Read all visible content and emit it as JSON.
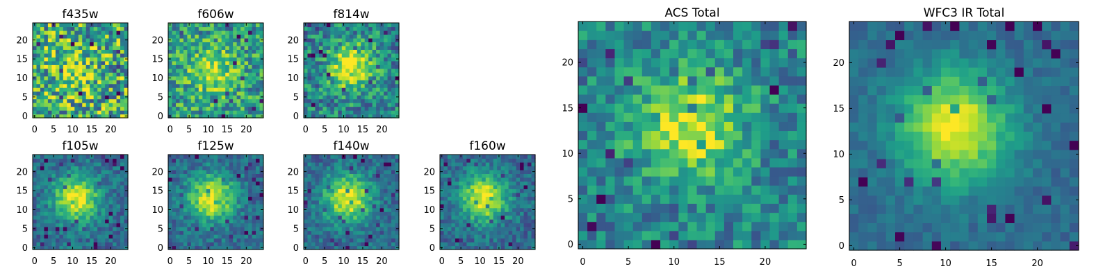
{
  "figure": {
    "caption": ""
  },
  "colormap": {
    "name": "viridis",
    "low": "#440154",
    "mid": "#21918c",
    "high": "#fde725"
  },
  "chart_data": [
    {
      "type": "heatmap",
      "title": "f435w",
      "xlim": [
        0,
        24
      ],
      "ylim": [
        0,
        24
      ],
      "xticks": [
        0,
        5,
        10,
        15,
        20
      ],
      "yticks": [
        0,
        5,
        10,
        15,
        20
      ],
      "source_peak": [
        10,
        12
      ],
      "peak_intensity": 0.2,
      "noise": 0.38,
      "background": 0.62
    },
    {
      "type": "heatmap",
      "title": "f606w",
      "xlim": [
        0,
        24
      ],
      "ylim": [
        0,
        24
      ],
      "xticks": [
        0,
        5,
        10,
        15,
        20
      ],
      "yticks": [
        0,
        5,
        10,
        15,
        20
      ],
      "source_peak": [
        11,
        12
      ],
      "peak_intensity": 0.4,
      "noise": 0.28,
      "background": 0.55
    },
    {
      "type": "heatmap",
      "title": "f814w",
      "xlim": [
        0,
        24
      ],
      "ylim": [
        0,
        24
      ],
      "xticks": [
        0,
        5,
        10,
        15,
        20
      ],
      "yticks": [
        0,
        5,
        10,
        15,
        20
      ],
      "source_peak": [
        12,
        13
      ],
      "peak_intensity": 0.55,
      "noise": 0.25,
      "background": 0.45
    },
    {
      "type": "heatmap",
      "title": "f105w",
      "xlim": [
        0,
        24
      ],
      "ylim": [
        0,
        24
      ],
      "xticks": [
        0,
        5,
        10,
        15,
        20
      ],
      "yticks": [
        0,
        5,
        10,
        15,
        20
      ],
      "source_peak": [
        11,
        13
      ],
      "peak_intensity": 0.65,
      "noise": 0.15,
      "background": 0.35
    },
    {
      "type": "heatmap",
      "title": "f125w",
      "xlim": [
        0,
        24
      ],
      "ylim": [
        0,
        24
      ],
      "xticks": [
        0,
        5,
        10,
        15,
        20
      ],
      "yticks": [
        0,
        5,
        10,
        15,
        20
      ],
      "source_peak": [
        11,
        13
      ],
      "peak_intensity": 0.65,
      "noise": 0.15,
      "background": 0.35
    },
    {
      "type": "heatmap",
      "title": "f140w",
      "xlim": [
        0,
        24
      ],
      "ylim": [
        0,
        24
      ],
      "xticks": [
        0,
        5,
        10,
        15,
        20
      ],
      "yticks": [
        0,
        5,
        10,
        15,
        20
      ],
      "source_peak": [
        11,
        13
      ],
      "peak_intensity": 0.65,
      "noise": 0.15,
      "background": 0.35
    },
    {
      "type": "heatmap",
      "title": "f160w",
      "xlim": [
        0,
        24
      ],
      "ylim": [
        0,
        24
      ],
      "xticks": [
        0,
        5,
        10,
        15,
        20
      ],
      "yticks": [
        0,
        5,
        10,
        15,
        20
      ],
      "source_peak": [
        11,
        13
      ],
      "peak_intensity": 0.65,
      "noise": 0.15,
      "background": 0.35
    },
    {
      "type": "heatmap",
      "title": "ACS Total",
      "xlim": [
        0,
        24
      ],
      "ylim": [
        0,
        24
      ],
      "xticks": [
        0,
        5,
        10,
        15,
        20
      ],
      "yticks": [
        0,
        5,
        10,
        15,
        20
      ],
      "source_peak": [
        12,
        13
      ],
      "peak_intensity": 0.5,
      "noise": 0.2,
      "background": 0.45
    },
    {
      "type": "heatmap",
      "title": "WFC3 IR Total",
      "xlim": [
        0,
        24
      ],
      "ylim": [
        0,
        24
      ],
      "xticks": [
        0,
        5,
        10,
        15,
        20
      ],
      "yticks": [
        0,
        5,
        10,
        15,
        20
      ],
      "source_peak": [
        11,
        13
      ],
      "peak_intensity": 0.65,
      "noise": 0.08,
      "background": 0.35
    }
  ]
}
